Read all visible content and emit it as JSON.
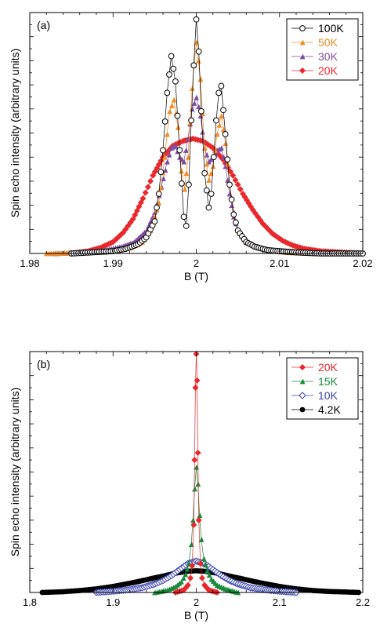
{
  "chart_data": [
    {
      "type": "line",
      "panel_label": "(a)",
      "xlabel": "B (T)",
      "ylabel": "Spin echo intensity (arbitrary units)",
      "xlim": [
        1.98,
        2.02
      ],
      "ylim": [
        0,
        1.05
      ],
      "xticks": [
        1.98,
        1.99,
        2.0,
        2.01,
        2.02
      ],
      "xtick_labels": [
        "1.98",
        "1.99",
        "2",
        "2.01",
        "2.02"
      ],
      "legend_position": "top-right",
      "grid": false,
      "series": [
        {
          "name": "100K",
          "color": "#000000",
          "marker": "open-circle",
          "x": [
            1.985,
            1.9875,
            1.99,
            1.9915,
            1.993,
            1.994,
            1.995,
            1.9955,
            1.996,
            1.9965,
            1.997,
            1.9975,
            1.998,
            1.9985,
            1.9988,
            1.9991,
            1.9994,
            1.9997,
            2.0,
            2.0003,
            2.0006,
            2.001,
            2.0015,
            2.0018,
            2.0021,
            2.0024,
            2.0027,
            2.003,
            2.0035,
            2.004,
            2.0045,
            2.005,
            2.006,
            2.007,
            2.0085,
            2.01,
            2.012,
            2.015,
            2.02
          ],
          "y": [
            0.0,
            0.005,
            0.01,
            0.02,
            0.04,
            0.07,
            0.14,
            0.26,
            0.45,
            0.7,
            0.86,
            0.75,
            0.45,
            0.16,
            0.12,
            0.3,
            0.58,
            0.82,
            1.02,
            0.88,
            0.62,
            0.35,
            0.2,
            0.26,
            0.42,
            0.58,
            0.7,
            0.73,
            0.52,
            0.3,
            0.17,
            0.1,
            0.05,
            0.03,
            0.015,
            0.01,
            0.005,
            0.0,
            0.0
          ]
        },
        {
          "name": "50K",
          "color": "#f08c28",
          "marker": "filled-triangle",
          "x": [
            1.982,
            1.986,
            1.99,
            1.992,
            1.9935,
            1.9945,
            1.9955,
            1.9962,
            1.9968,
            1.9973,
            1.9978,
            1.9982,
            1.9986,
            1.999,
            1.9995,
            2.0,
            2.0005,
            2.001,
            2.0015,
            2.002,
            2.0025,
            2.003,
            2.0035,
            2.004,
            2.0045,
            2.005,
            2.006,
            2.0075,
            2.009,
            2.011,
            2.014,
            2.018
          ],
          "y": [
            0.0,
            0.005,
            0.01,
            0.025,
            0.05,
            0.1,
            0.22,
            0.42,
            0.62,
            0.67,
            0.55,
            0.36,
            0.28,
            0.42,
            0.72,
            0.92,
            0.76,
            0.46,
            0.32,
            0.38,
            0.52,
            0.6,
            0.48,
            0.3,
            0.18,
            0.1,
            0.05,
            0.025,
            0.012,
            0.005,
            0.0,
            0.0
          ]
        },
        {
          "name": "30K",
          "color": "#7f4ca3",
          "marker": "filled-triangle",
          "x": [
            1.983,
            1.986,
            1.989,
            1.991,
            1.9925,
            1.994,
            1.995,
            1.9958,
            1.9965,
            1.997,
            1.9975,
            1.998,
            1.9985,
            1.999,
            1.9995,
            2.0,
            2.0005,
            2.001,
            2.0015,
            2.002,
            2.0025,
            2.003,
            2.0035,
            2.004,
            2.0045,
            2.005,
            2.006,
            2.0075,
            2.0095,
            2.012,
            2.016,
            2.02
          ],
          "y": [
            0.0,
            0.005,
            0.015,
            0.03,
            0.05,
            0.1,
            0.18,
            0.29,
            0.4,
            0.46,
            0.47,
            0.42,
            0.4,
            0.5,
            0.63,
            0.68,
            0.6,
            0.46,
            0.4,
            0.42,
            0.45,
            0.46,
            0.38,
            0.26,
            0.16,
            0.1,
            0.05,
            0.025,
            0.01,
            0.005,
            0.0,
            0.0
          ]
        },
        {
          "name": "20K",
          "color": "#e8282c",
          "marker": "filled-diamond",
          "x": [
            1.985,
            1.987,
            1.9885,
            1.99,
            1.9912,
            1.9924,
            1.9936,
            1.9948,
            1.996,
            1.9972,
            1.9984,
            1.9996,
            2.0008,
            2.002,
            2.0032,
            2.0044,
            2.0056,
            2.0068,
            2.008,
            2.0092,
            2.0104,
            2.0116,
            2.013,
            2.015,
            2.0175,
            2.02
          ],
          "y": [
            0.0,
            0.01,
            0.025,
            0.05,
            0.09,
            0.15,
            0.24,
            0.34,
            0.42,
            0.47,
            0.49,
            0.5,
            0.49,
            0.46,
            0.41,
            0.34,
            0.26,
            0.19,
            0.13,
            0.085,
            0.055,
            0.035,
            0.02,
            0.01,
            0.005,
            0.0
          ]
        }
      ]
    },
    {
      "type": "line",
      "panel_label": "(b)",
      "xlabel": "B (T)",
      "ylabel": "Spin echo intensity (arbitrary units)",
      "xlim": [
        1.8,
        2.2
      ],
      "ylim": [
        0,
        1.0
      ],
      "xticks": [
        1.8,
        1.9,
        2.0,
        2.1,
        2.2
      ],
      "xtick_labels": [
        "1.8",
        "1.9",
        "2",
        "2.1",
        "2.2"
      ],
      "legend_position": "top-right",
      "grid": false,
      "series": [
        {
          "name": "20K",
          "color": "#e8282c",
          "marker": "filled-diamond",
          "x": [
            1.975,
            1.985,
            1.99,
            1.993,
            1.995,
            1.997,
            1.998,
            1.999,
            2.0,
            2.001,
            2.002,
            2.003,
            2.005,
            2.007,
            2.01,
            2.015,
            2.025
          ],
          "y": [
            0.0,
            0.01,
            0.03,
            0.06,
            0.11,
            0.28,
            0.55,
            0.85,
            0.99,
            0.88,
            0.58,
            0.3,
            0.12,
            0.06,
            0.03,
            0.01,
            0.0
          ]
        },
        {
          "name": "15K",
          "color": "#178a3a",
          "marker": "filled-triangle",
          "x": [
            1.95,
            1.965,
            1.975,
            1.982,
            1.987,
            1.991,
            1.994,
            1.996,
            1.998,
            2.0,
            2.002,
            2.004,
            2.006,
            2.009,
            2.013,
            2.018,
            2.025,
            2.035,
            2.05
          ],
          "y": [
            0.0,
            0.01,
            0.025,
            0.045,
            0.075,
            0.12,
            0.2,
            0.3,
            0.43,
            0.52,
            0.45,
            0.32,
            0.22,
            0.14,
            0.09,
            0.055,
            0.03,
            0.015,
            0.0
          ]
        },
        {
          "name": "10K",
          "color": "#3a44b0",
          "marker": "open-diamond",
          "x": [
            1.88,
            1.9,
            1.92,
            1.935,
            1.95,
            1.96,
            1.97,
            1.98,
            1.99,
            2.0,
            2.01,
            2.02,
            2.03,
            2.04,
            2.05,
            2.065,
            2.08,
            2.1,
            2.12
          ],
          "y": [
            0.0,
            0.005,
            0.012,
            0.02,
            0.035,
            0.05,
            0.07,
            0.095,
            0.12,
            0.13,
            0.12,
            0.095,
            0.07,
            0.05,
            0.035,
            0.02,
            0.012,
            0.005,
            0.0
          ]
        },
        {
          "name": "4.2K",
          "color": "#000000",
          "marker": "filled-circle",
          "x": [
            1.815,
            1.84,
            1.86,
            1.88,
            1.9,
            1.915,
            1.93,
            1.945,
            1.96,
            1.975,
            1.99,
            2.0,
            2.01,
            2.025,
            2.04,
            2.055,
            2.07,
            2.085,
            2.1,
            2.12,
            2.14,
            2.16,
            2.18,
            2.195
          ],
          "y": [
            0.0,
            0.003,
            0.008,
            0.015,
            0.025,
            0.035,
            0.045,
            0.057,
            0.068,
            0.08,
            0.088,
            0.09,
            0.088,
            0.08,
            0.068,
            0.057,
            0.045,
            0.035,
            0.025,
            0.015,
            0.008,
            0.004,
            0.002,
            0.0
          ]
        }
      ]
    }
  ]
}
